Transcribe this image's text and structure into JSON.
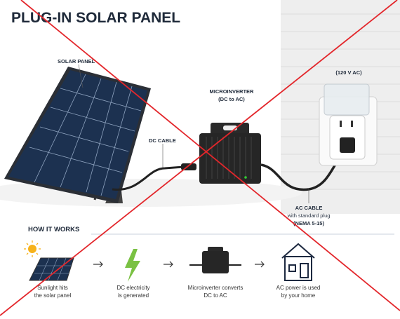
{
  "header": {
    "title": "PLUG-IN SOLAR PANEL"
  },
  "labels": {
    "solar_panel": "SOLAR PANEL",
    "dc_cable": "DC CABLE",
    "microinverter": [
      "MICROINVERTER",
      "(DC to AC)"
    ],
    "outlet": "(120 V AC)",
    "ac_cable": [
      "AC CABLE",
      "with standard plug",
      "(NEMA 5-15)"
    ]
  },
  "how_it_works": {
    "title": "HOW IT WORKS",
    "steps": [
      [
        "Sunlight hits",
        "the solar panel"
      ],
      [
        "DC electricity",
        "is generated"
      ],
      [
        "Microinverter converts",
        "DC to AC"
      ],
      [
        "AC power is used",
        "by your home"
      ]
    ]
  }
}
